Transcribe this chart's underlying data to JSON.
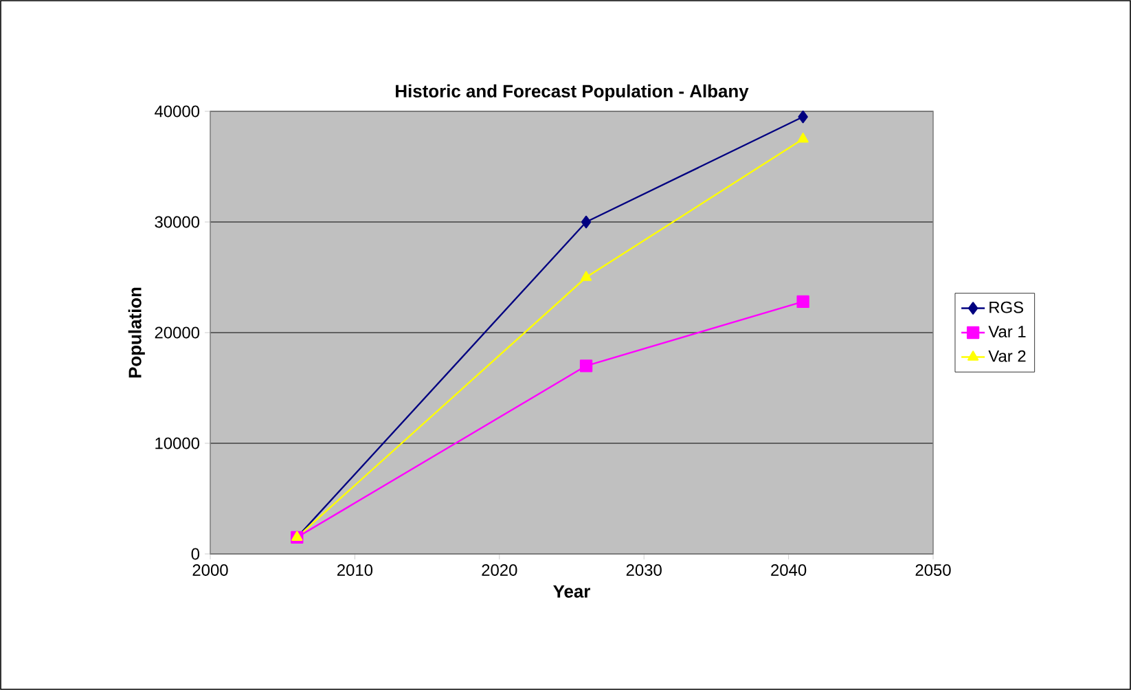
{
  "chart_data": {
    "type": "line",
    "title": "Historic and Forecast Population - Albany",
    "xlabel": "Year",
    "ylabel": "Population",
    "x": [
      2006,
      2026,
      2041
    ],
    "series": [
      {
        "name": "RGS",
        "color": "#000080",
        "marker": "diamond",
        "values": [
          1500,
          30000,
          39500
        ]
      },
      {
        "name": "Var 1",
        "color": "#ff00ff",
        "marker": "square",
        "values": [
          1500,
          17000,
          22800
        ]
      },
      {
        "name": "Var 2",
        "color": "#ffff00",
        "marker": "triangle",
        "values": [
          1500,
          25000,
          37500
        ]
      }
    ],
    "xlim": [
      2000,
      2050
    ],
    "xticks": [
      2000,
      2010,
      2020,
      2030,
      2040,
      2050
    ],
    "ylim": [
      0,
      40000
    ],
    "yticks": [
      0,
      10000,
      20000,
      30000,
      40000
    ],
    "grid": "y",
    "legend": "right"
  }
}
